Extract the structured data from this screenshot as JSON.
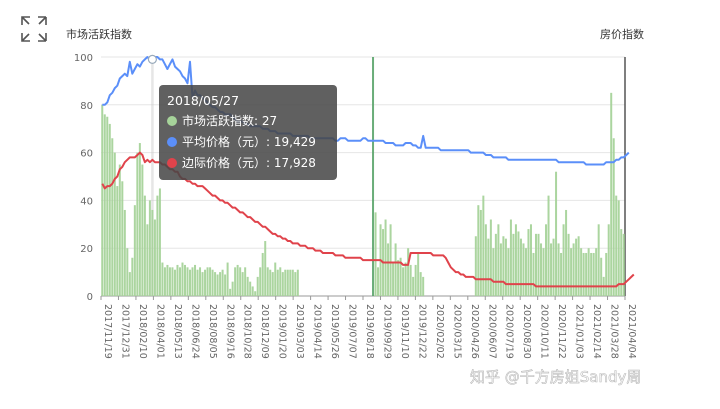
{
  "ui": {
    "expand_icon": "expand-arrows-icon",
    "left_axis_title": "市场活跃指数",
    "right_axis_title": "房价指数",
    "watermark": "知乎 @千方房姐Sandy周"
  },
  "tooltip": {
    "title": "2018/05/27",
    "rows": [
      {
        "label": "市场活跃指数: 27",
        "color": "#a6d39a"
      },
      {
        "label": "平均价格（元）: 19,429",
        "color": "#5b8ff9"
      },
      {
        "label": "边际价格（元）: 17,928",
        "color": "#e0434b"
      }
    ]
  },
  "chart_data": {
    "type": "bar",
    "x_tick_labels": [
      "2017/11/19",
      "2017/12/31",
      "2018/02/10",
      "2018/04/01",
      "2018/05/13",
      "2018/06/24",
      "2018/08/05",
      "2018/09/16",
      "2018/10/28",
      "2018/12/09",
      "2019/01/20",
      "2019/03/03",
      "2019/04/14",
      "2019/05/26",
      "2019/07/07",
      "2019/08/18",
      "2019/09/29",
      "2019/11/10",
      "2019/12/22",
      "2020/02/02",
      "2020/03/15",
      "2020/04/26",
      "2020/06/07",
      "2020/07/19",
      "2020/08/30",
      "2020/10/11",
      "2020/11/22",
      "2021/01/03",
      "2021/02/14",
      "2021/03/28",
      "2021/04/04"
    ],
    "ylim": [
      0,
      100
    ],
    "y_ticks": [
      0,
      20,
      40,
      60,
      80,
      100
    ],
    "series": [
      {
        "name": "市场活跃指数",
        "type": "bar",
        "color": "#a6d39a",
        "values": [
          80,
          76,
          75,
          72,
          66,
          60,
          46,
          55,
          48,
          36,
          20,
          10,
          16,
          38,
          60,
          64,
          55,
          42,
          30,
          40,
          36,
          32,
          42,
          45,
          14,
          12,
          13,
          12,
          12,
          11,
          13,
          12,
          14,
          13,
          12,
          11,
          12,
          13,
          11,
          12,
          10,
          11,
          12,
          12,
          11,
          10,
          9,
          10,
          11,
          9,
          14,
          3,
          6,
          12,
          13,
          12,
          10,
          12,
          8,
          6,
          4,
          2,
          8,
          12,
          18,
          23,
          12,
          11,
          10,
          14,
          11,
          12,
          10,
          11,
          11,
          11,
          11,
          10,
          11,
          0,
          0,
          0,
          0,
          0,
          0,
          0,
          0,
          0,
          0,
          0,
          0,
          0,
          0,
          0,
          0,
          0,
          0,
          0,
          0,
          0,
          0,
          0,
          0,
          0,
          0,
          0,
          0,
          0,
          100,
          35,
          12,
          30,
          28,
          32,
          22,
          30,
          14,
          22,
          15,
          16,
          12,
          14,
          20,
          13,
          8,
          13,
          18,
          10,
          8,
          0,
          0,
          0,
          0,
          0,
          0,
          0,
          0,
          0,
          0,
          0,
          0,
          0,
          0,
          0,
          0,
          0,
          0,
          0,
          0,
          25,
          38,
          36,
          42,
          30,
          24,
          32,
          20,
          26,
          30,
          22,
          25,
          24,
          20,
          32,
          26,
          30,
          27,
          24,
          22,
          20,
          28,
          30,
          18,
          26,
          26,
          22,
          20,
          30,
          42,
          22,
          24,
          52,
          22,
          18,
          30,
          36,
          26,
          20,
          22,
          24,
          25,
          20,
          18,
          18,
          20,
          18,
          18,
          20,
          30,
          16,
          8,
          18,
          30,
          85,
          66,
          42,
          40,
          28,
          26
        ]
      },
      {
        "name": "平均价格（元）",
        "type": "line",
        "color": "#5b8ff9",
        "values": [
          80,
          80,
          81,
          84,
          85,
          87,
          88,
          91,
          92,
          93,
          92,
          98,
          93,
          95,
          97,
          96,
          98,
          99,
          100,
          99,
          99,
          100,
          100,
          99,
          99,
          97,
          95,
          97,
          99,
          96,
          95,
          94,
          92,
          91,
          89,
          98,
          83,
          86,
          84,
          84,
          83,
          82,
          81,
          80,
          79,
          79,
          78,
          77,
          77,
          76,
          76,
          76,
          75,
          74,
          73,
          73,
          73,
          72,
          72,
          71,
          71,
          71,
          71,
          71,
          70,
          70,
          70,
          69,
          69,
          69,
          68,
          68,
          68,
          68,
          68,
          68,
          67,
          67,
          67,
          67,
          67,
          67,
          67,
          66,
          66,
          66,
          66,
          66,
          66,
          66,
          66,
          66,
          66,
          65,
          65,
          66,
          66,
          66,
          65,
          65,
          65,
          65,
          65,
          65,
          66,
          66,
          65,
          65,
          65,
          65,
          65,
          65,
          65,
          64,
          64,
          64,
          64,
          63,
          63,
          63,
          63,
          64,
          64,
          64,
          63,
          63,
          62,
          62,
          67,
          62,
          62,
          62,
          62,
          62,
          62,
          61,
          61,
          61,
          61,
          61,
          61,
          61,
          61,
          61,
          61,
          61,
          61,
          60,
          60,
          60,
          60,
          60,
          60,
          59,
          59,
          59,
          58,
          58,
          58,
          58,
          58,
          58,
          57,
          57,
          57,
          57,
          57,
          57,
          57,
          57,
          57,
          57,
          57,
          57,
          57,
          57,
          57,
          57,
          57,
          57,
          57,
          57,
          56,
          56,
          56,
          56,
          56,
          56,
          56,
          56,
          56,
          56,
          56,
          55,
          55,
          55,
          55,
          55,
          55,
          55,
          55,
          56,
          56,
          56,
          56,
          57,
          57,
          58,
          58,
          59,
          60
        ]
      },
      {
        "name": "边际价格（元）",
        "type": "line",
        "color": "#e0434b",
        "values": [
          47,
          45,
          46,
          46,
          47,
          49,
          50,
          53,
          54,
          56,
          57,
          58,
          58,
          58,
          59,
          60,
          59,
          56,
          57,
          56,
          57,
          56,
          56,
          56,
          55,
          55,
          54,
          53,
          53,
          52,
          52,
          50,
          49,
          49,
          48,
          48,
          47,
          47,
          46,
          46,
          46,
          45,
          44,
          43,
          42,
          42,
          41,
          40,
          40,
          39,
          39,
          38,
          37,
          37,
          36,
          35,
          35,
          34,
          33,
          33,
          32,
          31,
          31,
          30,
          29,
          29,
          28,
          27,
          26,
          26,
          25,
          25,
          24,
          24,
          23,
          23,
          22,
          22,
          22,
          21,
          21,
          21,
          20,
          20,
          20,
          19,
          19,
          19,
          18,
          18,
          18,
          18,
          18,
          17,
          17,
          17,
          17,
          16,
          16,
          16,
          16,
          16,
          16,
          16,
          15,
          15,
          15,
          15,
          15,
          15,
          15,
          15,
          14,
          14,
          14,
          14,
          14,
          14,
          14,
          14,
          13,
          13,
          13,
          18,
          18,
          18,
          18,
          18,
          18,
          18,
          18,
          18,
          17,
          17,
          17,
          17,
          17,
          16,
          14,
          12,
          11,
          10,
          10,
          9,
          9,
          8,
          8,
          8,
          8,
          7,
          7,
          7,
          7,
          7,
          7,
          7,
          6,
          6,
          6,
          6,
          6,
          5,
          5,
          5,
          5,
          5,
          5,
          5,
          5,
          5,
          5,
          5,
          5,
          4,
          4,
          4,
          4,
          4,
          4,
          4,
          4,
          4,
          4,
          4,
          4,
          4,
          4,
          4,
          4,
          4,
          4,
          4,
          4,
          4,
          4,
          4,
          4,
          4,
          4,
          4,
          4,
          4,
          4,
          4,
          4,
          4,
          5,
          5,
          5,
          6,
          7,
          8,
          9
        ]
      }
    ],
    "highlighted_category": "2018/05/27"
  }
}
